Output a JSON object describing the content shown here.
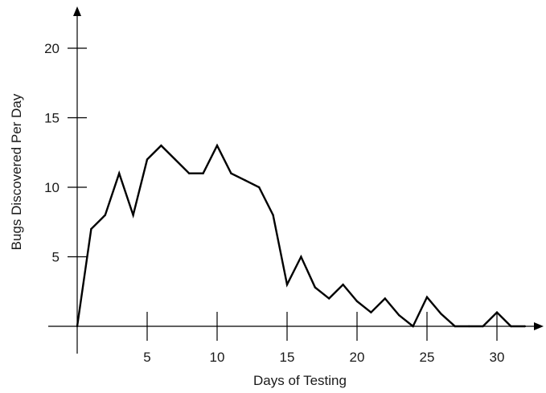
{
  "chart_data": {
    "type": "line",
    "title": "",
    "xlabel": "Days of Testing",
    "ylabel": "Bugs Discovered Per Day",
    "xlim": [
      0,
      33
    ],
    "ylim": [
      0,
      20
    ],
    "x_ticks": [
      5,
      10,
      15,
      20,
      25,
      30
    ],
    "y_ticks": [
      5,
      10,
      15,
      20
    ],
    "grid": false,
    "legend": "none",
    "series": [
      {
        "name": "",
        "color": "#000000",
        "x": [
          0,
          1,
          2,
          3,
          4,
          5,
          6,
          7,
          8,
          9,
          10,
          11,
          12,
          13,
          14,
          15,
          16,
          17,
          18,
          19,
          20,
          21,
          22,
          23,
          24,
          25,
          26,
          27,
          28,
          29,
          30,
          31,
          32
        ],
        "y": [
          0,
          7,
          8,
          11,
          8,
          12,
          13,
          12,
          11,
          11,
          13,
          11,
          10.5,
          10,
          8,
          3,
          5,
          2.8,
          2,
          3,
          1.8,
          1,
          2,
          0.8,
          0,
          2.1,
          0.9,
          0,
          0,
          0,
          1,
          0,
          0
        ]
      }
    ]
  }
}
